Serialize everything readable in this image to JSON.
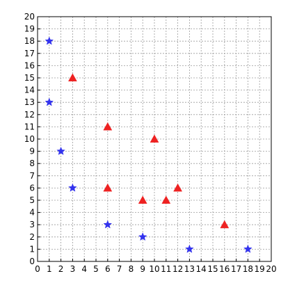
{
  "chart_data": {
    "type": "scatter",
    "title": "",
    "xlabel": "",
    "ylabel": "",
    "xlim": [
      0,
      20
    ],
    "ylim": [
      0,
      20
    ],
    "grid": true,
    "x_ticks": [
      0,
      1,
      2,
      3,
      4,
      5,
      6,
      7,
      8,
      9,
      10,
      11,
      12,
      13,
      14,
      15,
      16,
      17,
      18,
      19,
      20
    ],
    "y_ticks": [
      0,
      1,
      2,
      3,
      4,
      5,
      6,
      7,
      8,
      9,
      10,
      11,
      12,
      13,
      14,
      15,
      16,
      17,
      18,
      19,
      20
    ],
    "series": [
      {
        "marker": "star",
        "color": "#3333ee",
        "points": [
          {
            "x": 1,
            "y": 18
          },
          {
            "x": 1,
            "y": 13
          },
          {
            "x": 2,
            "y": 9
          },
          {
            "x": 3,
            "y": 6
          },
          {
            "x": 6,
            "y": 3
          },
          {
            "x": 9,
            "y": 2
          },
          {
            "x": 13,
            "y": 1
          },
          {
            "x": 18,
            "y": 1
          }
        ]
      },
      {
        "marker": "triangle",
        "color": "#ee2222",
        "points": [
          {
            "x": 3,
            "y": 15
          },
          {
            "x": 6,
            "y": 11
          },
          {
            "x": 6,
            "y": 6
          },
          {
            "x": 9,
            "y": 5
          },
          {
            "x": 10,
            "y": 10
          },
          {
            "x": 11,
            "y": 5
          },
          {
            "x": 12,
            "y": 6
          },
          {
            "x": 16,
            "y": 3
          }
        ]
      }
    ]
  }
}
